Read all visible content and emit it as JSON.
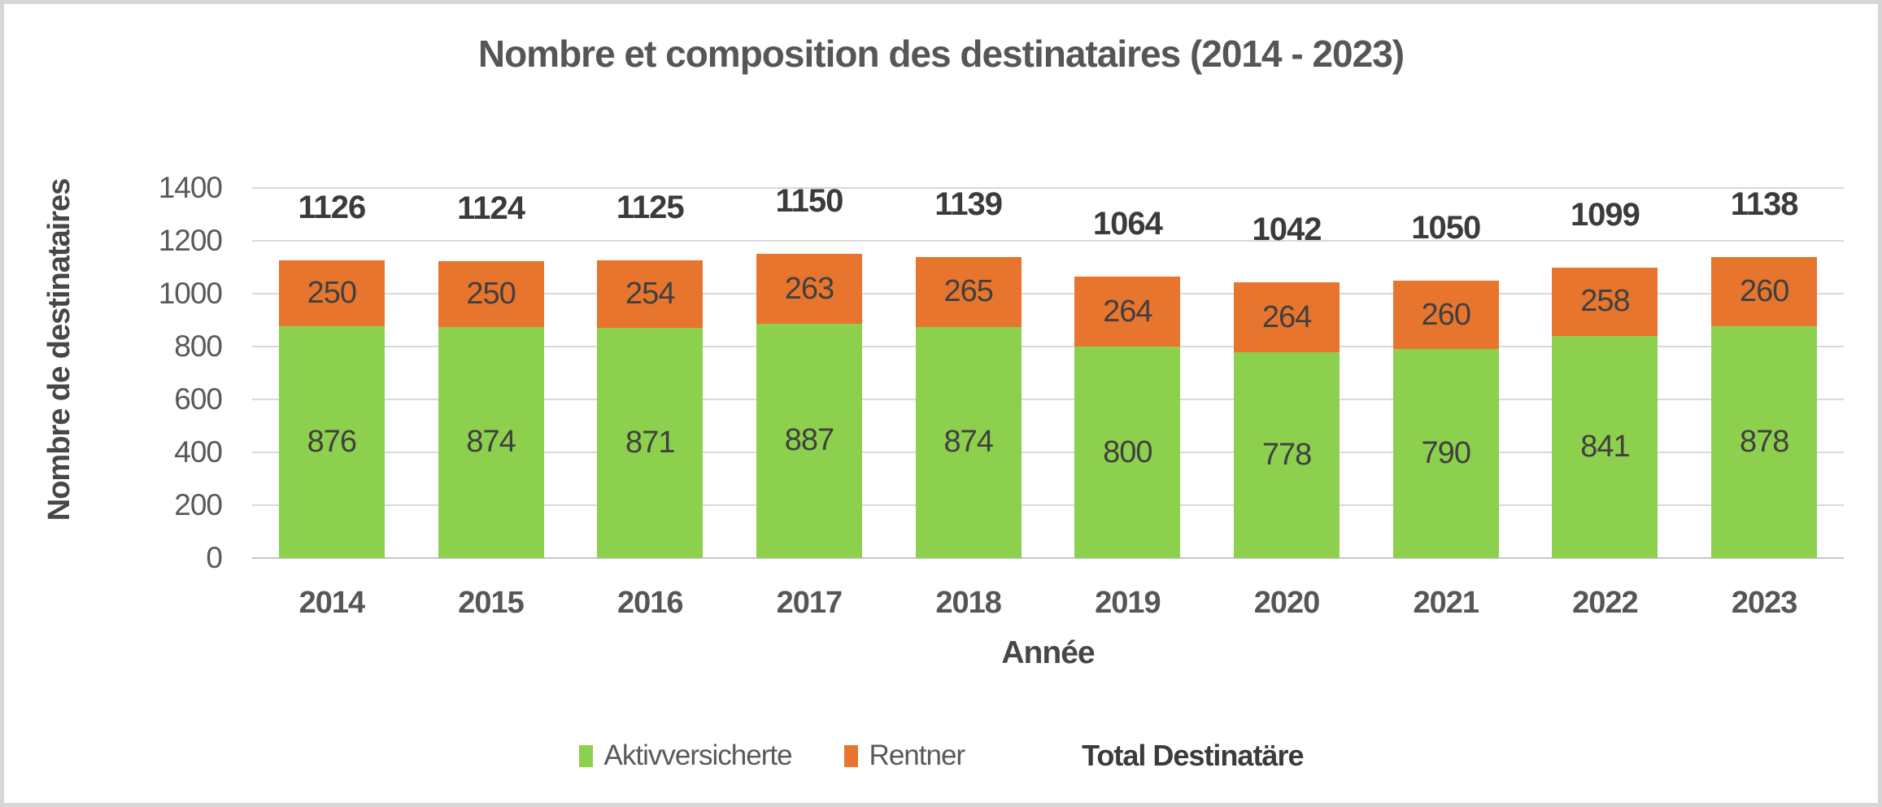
{
  "title": "Nombre et composition des destinataires (2014 - 2023)",
  "colors": {
    "green": "#8dd04e",
    "orange": "#e8752d",
    "gridline": "#d9d9d9",
    "axis_line": "#c6c6c6",
    "border": "#d6d6d6",
    "text_gray": "#595959",
    "text_dark": "#3b3b3b"
  },
  "legend": {
    "items": [
      {
        "label": "Aktivversicherte",
        "swatch_color": "#8dd04e"
      },
      {
        "label": "Rentner",
        "swatch_color": "#e8752d"
      }
    ],
    "total_label": "Total Destinatäre"
  },
  "chart_data": {
    "type": "bar",
    "stacked": true,
    "title": "Nombre et composition des destinataires (2014 - 2023)",
    "xlabel": "Année",
    "ylabel": "Nombre de destinataires",
    "ylim": [
      0,
      1400
    ],
    "ytick_step": 200,
    "grid": true,
    "legend_position": "bottom",
    "categories": [
      "2014",
      "2015",
      "2016",
      "2017",
      "2018",
      "2019",
      "2020",
      "2021",
      "2022",
      "2023"
    ],
    "series": [
      {
        "name": "Aktivversicherte",
        "color": "#8dd04e",
        "values": [
          876,
          874,
          871,
          887,
          874,
          800,
          778,
          790,
          841,
          878
        ]
      },
      {
        "name": "Rentner",
        "color": "#e8752d",
        "values": [
          250,
          250,
          254,
          263,
          265,
          264,
          264,
          260,
          258,
          260
        ]
      }
    ],
    "totals": {
      "name": "Total Destinatäre",
      "values": [
        1126,
        1124,
        1125,
        1150,
        1139,
        1064,
        1042,
        1050,
        1099,
        1138
      ]
    }
  }
}
